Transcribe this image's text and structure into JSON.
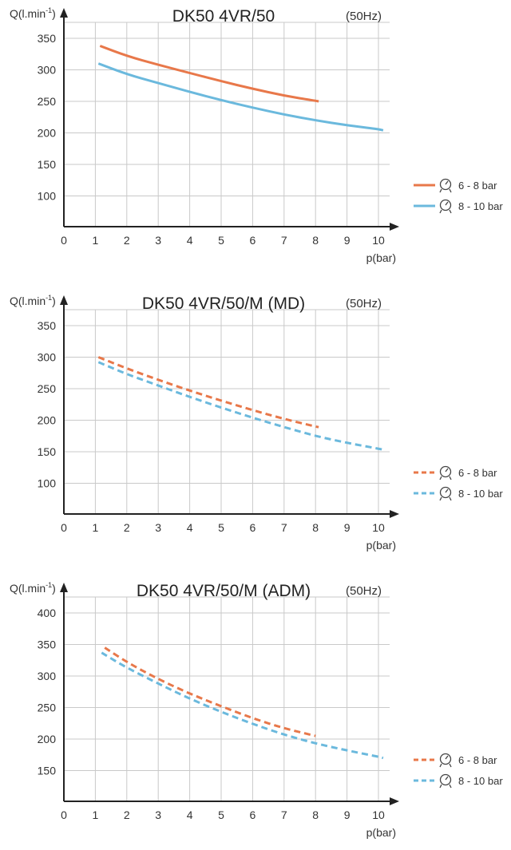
{
  "chart_data": [
    {
      "type": "line",
      "title": "DK50 4VR/50",
      "frequency": "(50Hz)",
      "ylabel": "Q(l.min",
      "ylabel_sup": "-1",
      "ylabel_close": ")",
      "xlabel": "p(bar)",
      "xlim": [
        0,
        10
      ],
      "ylim": [
        50,
        380
      ],
      "xticks": [
        0,
        1,
        2,
        3,
        4,
        5,
        6,
        7,
        8,
        9,
        10
      ],
      "yticks": [
        100,
        150,
        200,
        250,
        300,
        350
      ],
      "grid": true,
      "legend_position": "right",
      "series": [
        {
          "name": "6 - 8 bar",
          "color": "#E8784A",
          "dashed": false,
          "x": [
            1.15,
            2,
            3,
            4,
            5,
            6,
            7,
            8,
            8.1
          ],
          "y": [
            338,
            322,
            308,
            295,
            282,
            270,
            259,
            251,
            250
          ]
        },
        {
          "name": "8 - 10 bar",
          "color": "#6BB9DD",
          "dashed": false,
          "x": [
            1.1,
            2,
            3,
            4,
            5,
            6,
            7,
            8,
            9,
            10,
            10.15
          ],
          "y": [
            310,
            293,
            279,
            265,
            252,
            240,
            229,
            220,
            212,
            206,
            204
          ]
        }
      ]
    },
    {
      "type": "line",
      "title": "DK50 4VR/50/M (MD)",
      "frequency": "(50Hz)",
      "ylabel": "Q(l.min",
      "ylabel_sup": "-1",
      "ylabel_close": ")",
      "xlabel": "p(bar)",
      "xlim": [
        0,
        10
      ],
      "ylim": [
        50,
        380
      ],
      "xticks": [
        0,
        1,
        2,
        3,
        4,
        5,
        6,
        7,
        8,
        9,
        10
      ],
      "yticks": [
        100,
        150,
        200,
        250,
        300,
        350
      ],
      "grid": true,
      "legend_position": "right",
      "series": [
        {
          "name": "6 - 8 bar",
          "color": "#E8784A",
          "dashed": true,
          "x": [
            1.1,
            2,
            3,
            4,
            5,
            6,
            7,
            8,
            8.1
          ],
          "y": [
            300,
            282,
            264,
            247,
            231,
            216,
            202,
            190,
            189
          ]
        },
        {
          "name": "8 - 10 bar",
          "color": "#6BB9DD",
          "dashed": true,
          "x": [
            1.1,
            2,
            3,
            4,
            5,
            6,
            7,
            8,
            9,
            10,
            10.15
          ],
          "y": [
            292,
            273,
            255,
            237,
            220,
            204,
            189,
            175,
            164,
            155,
            153
          ]
        }
      ]
    },
    {
      "type": "line",
      "title": "DK50 4VR/50/M (ADM)",
      "frequency": "(50Hz)",
      "ylabel": "Q(l.min",
      "ylabel_sup": "-1",
      "ylabel_close": ")",
      "xlabel": "p(bar)",
      "xlim": [
        0,
        10
      ],
      "ylim": [
        100,
        430
      ],
      "xticks": [
        0,
        1,
        2,
        3,
        4,
        5,
        6,
        7,
        8,
        9,
        10
      ],
      "yticks": [
        150,
        200,
        250,
        300,
        350,
        400
      ],
      "grid": true,
      "legend_position": "right",
      "series": [
        {
          "name": "6 - 8 bar",
          "color": "#E8784A",
          "dashed": true,
          "x": [
            1.3,
            2,
            3,
            4,
            5,
            6,
            7,
            8
          ],
          "y": [
            345,
            322,
            295,
            272,
            252,
            233,
            217,
            205
          ]
        },
        {
          "name": "8 - 10 bar",
          "color": "#6BB9DD",
          "dashed": true,
          "x": [
            1.2,
            2,
            3,
            4,
            5,
            6,
            7,
            8,
            9,
            10,
            10.15
          ],
          "y": [
            337,
            313,
            288,
            264,
            243,
            224,
            207,
            193,
            182,
            172,
            170
          ]
        }
      ]
    }
  ]
}
